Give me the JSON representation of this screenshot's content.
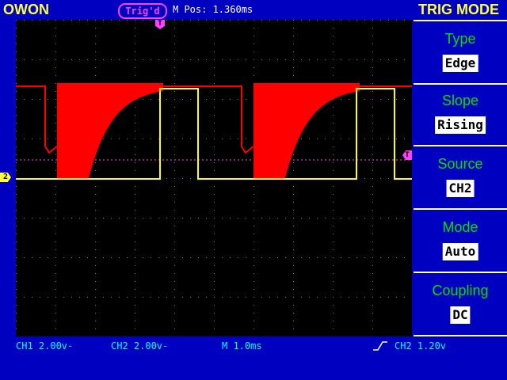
{
  "header": {
    "brand": "OWON",
    "trigger_state": "Trig'd",
    "position": "M Pos: 1.360ms",
    "menu_title": "TRIG MODE"
  },
  "markers": {
    "ch2": "2",
    "trigger_position": "T",
    "trigger_level": "T"
  },
  "menu": [
    {
      "label": "Type",
      "value": "Edge"
    },
    {
      "label": "Slope",
      "value": "Rising"
    },
    {
      "label": "Source",
      "value": "CH2"
    },
    {
      "label": "Mode",
      "value": "Auto"
    },
    {
      "label": "Coupling",
      "value": "DC"
    }
  ],
  "status": {
    "ch1": "CH1 2.00v-",
    "ch2": "CH2 2.00v-",
    "timebase": "M 1.0ms",
    "trigger": "CH2 1.20v",
    "trigger_slope_icon": "rising-edge-icon"
  },
  "colors": {
    "background": "#0000c0",
    "screen": "#000000",
    "ch1_trace": "#ff0000",
    "ch2_trace": "#ffff00",
    "trigger": "#ff40ff",
    "menu_label": "#00e000",
    "status_text": "#00ffff",
    "title_text": "#ffff40"
  }
}
